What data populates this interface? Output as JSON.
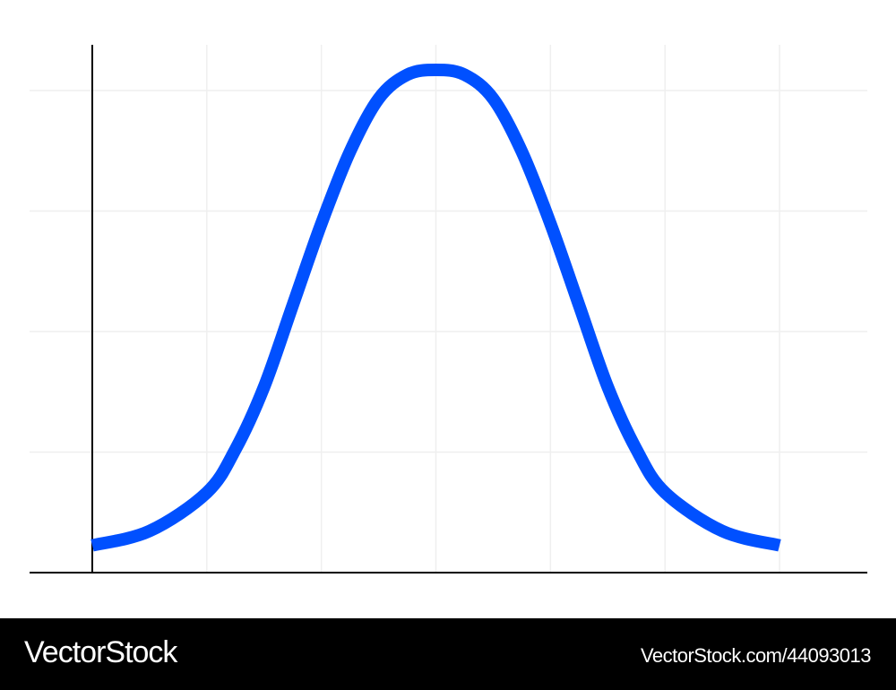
{
  "chart_data": {
    "type": "line",
    "title": "",
    "xlabel": "",
    "ylabel": "",
    "xlim": [
      -3,
      3
    ],
    "ylim": [
      0,
      1.05
    ],
    "grid": true,
    "x_gridlines": [
      -2,
      -1,
      0,
      1,
      2,
      3
    ],
    "y_gridlines": [
      0.25,
      0.5,
      0.75,
      1.0
    ],
    "series": [
      {
        "color": "#0050ff",
        "x": [
          -3,
          -2.5,
          -2,
          -1.75,
          -1.5,
          -1.25,
          -1,
          -0.75,
          -0.5,
          -0.25,
          0,
          0.25,
          0.5,
          0.75,
          1,
          1.25,
          1.5,
          1.75,
          2,
          2.5,
          3
        ],
        "values": [
          0.01,
          0.04,
          0.12,
          0.21,
          0.34,
          0.51,
          0.68,
          0.83,
          0.94,
          0.99,
          1.0,
          0.99,
          0.94,
          0.83,
          0.68,
          0.51,
          0.34,
          0.21,
          0.12,
          0.04,
          0.01
        ]
      }
    ]
  },
  "colors": {
    "curve": "#0050ff",
    "grid": "#efefef",
    "axis": "#000000",
    "watermark_bg": "#000000",
    "watermark_text": "#ffffff"
  },
  "watermark": {
    "logo": "VectorStock",
    "id_text": "VectorStock.com/44093013"
  }
}
